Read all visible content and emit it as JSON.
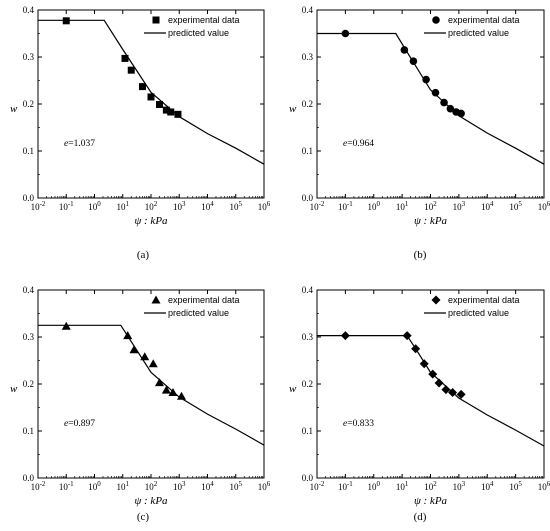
{
  "chart_data": [
    {
      "type": "scatter",
      "panel_label": "(a)",
      "ylabel": "w",
      "xlabel": "ψ : kPa",
      "xscale": "log",
      "xlim": [
        0.01,
        1000000
      ],
      "ylim": [
        0.0,
        0.4
      ],
      "xticks": [
        "10-2",
        "10-1",
        "100",
        "101",
        "102",
        "103",
        "104",
        "105",
        "106"
      ],
      "yticks": [
        "0.0",
        "0.1",
        "0.2",
        "0.3",
        "0.4"
      ],
      "legend": {
        "position": "top-right",
        "entries": [
          "experimental data",
          "predicted value"
        ]
      },
      "annotation": {
        "prefix": "e",
        "text": "=1.037"
      },
      "marker": "square",
      "series": [
        {
          "name": "experimental data",
          "points": [
            [
              0.1,
              0.377
            ],
            [
              12,
              0.297
            ],
            [
              20,
              0.272
            ],
            [
              50,
              0.237
            ],
            [
              100,
              0.215
            ],
            [
              200,
              0.199
            ],
            [
              350,
              0.187
            ],
            [
              500,
              0.183
            ],
            [
              900,
              0.178
            ]
          ]
        },
        {
          "name": "predicted value",
          "line": [
            [
              0.01,
              0.378
            ],
            [
              2.2,
              0.378
            ],
            [
              10,
              0.316
            ],
            [
              100,
              0.225
            ],
            [
              1000,
              0.173
            ],
            [
              10000,
              0.137
            ],
            [
              100000,
              0.106
            ],
            [
              1000000,
              0.072
            ]
          ]
        }
      ]
    },
    {
      "type": "scatter",
      "panel_label": "(b)",
      "ylabel": "w",
      "xlabel": "ψ : kPa",
      "xscale": "log",
      "xlim": [
        0.01,
        1000000
      ],
      "ylim": [
        0.0,
        0.4
      ],
      "xticks": [
        "10-2",
        "10-1",
        "100",
        "101",
        "102",
        "103",
        "104",
        "105",
        "106"
      ],
      "yticks": [
        "0.0",
        "0.1",
        "0.2",
        "0.3",
        "0.4"
      ],
      "legend": {
        "position": "top-right",
        "entries": [
          "experimental data",
          "predicted value"
        ]
      },
      "annotation": {
        "prefix": "e",
        "text": "=0.964"
      },
      "marker": "circle",
      "series": [
        {
          "name": "experimental data",
          "points": [
            [
              0.1,
              0.35
            ],
            [
              12,
              0.315
            ],
            [
              25,
              0.291
            ],
            [
              70,
              0.252
            ],
            [
              150,
              0.224
            ],
            [
              300,
              0.203
            ],
            [
              500,
              0.19
            ],
            [
              800,
              0.183
            ],
            [
              1200,
              0.18
            ]
          ]
        },
        {
          "name": "predicted value",
          "line": [
            [
              0.01,
              0.35
            ],
            [
              6,
              0.35
            ],
            [
              20,
              0.298
            ],
            [
              100,
              0.23
            ],
            [
              1000,
              0.175
            ],
            [
              10000,
              0.138
            ],
            [
              100000,
              0.106
            ],
            [
              1000000,
              0.072
            ]
          ]
        }
      ]
    },
    {
      "type": "scatter",
      "panel_label": "(c)",
      "ylabel": "w",
      "xlabel": "ψ : kPa",
      "xscale": "log",
      "xlim": [
        0.01,
        1000000
      ],
      "ylim": [
        0.0,
        0.4
      ],
      "xticks": [
        "10-2",
        "10-1",
        "100",
        "101",
        "102",
        "103",
        "104",
        "105",
        "106"
      ],
      "yticks": [
        "0.0",
        "0.1",
        "0.2",
        "0.3",
        "0.4"
      ],
      "legend": {
        "position": "top-right",
        "entries": [
          "experimental data",
          "predicted value"
        ]
      },
      "annotation": {
        "prefix": "e",
        "text": "=0.897"
      },
      "marker": "triangle",
      "series": [
        {
          "name": "experimental data",
          "points": [
            [
              0.1,
              0.323
            ],
            [
              15,
              0.303
            ],
            [
              25,
              0.273
            ],
            [
              60,
              0.258
            ],
            [
              120,
              0.243
            ],
            [
              200,
              0.203
            ],
            [
              350,
              0.187
            ],
            [
              600,
              0.182
            ],
            [
              1200,
              0.174
            ]
          ]
        },
        {
          "name": "predicted value",
          "line": [
            [
              0.01,
              0.325
            ],
            [
              8.5,
              0.325
            ],
            [
              20,
              0.29
            ],
            [
              100,
              0.225
            ],
            [
              1000,
              0.172
            ],
            [
              10000,
              0.136
            ],
            [
              100000,
              0.104
            ],
            [
              1000000,
              0.07
            ]
          ]
        }
      ]
    },
    {
      "type": "scatter",
      "panel_label": "(d)",
      "ylabel": "w",
      "xlabel": "ψ : kPa",
      "xscale": "log",
      "xlim": [
        0.01,
        1000000
      ],
      "ylim": [
        0.0,
        0.4
      ],
      "xticks": [
        "10-2",
        "10-1",
        "100",
        "101",
        "102",
        "103",
        "104",
        "105",
        "106"
      ],
      "yticks": [
        "0.0",
        "0.1",
        "0.2",
        "0.3",
        "0.4"
      ],
      "legend": {
        "position": "top-right",
        "entries": [
          "experimental data",
          "predicted value"
        ]
      },
      "annotation": {
        "prefix": "e",
        "text": "=0.833"
      },
      "marker": "diamond",
      "series": [
        {
          "name": "experimental data",
          "points": [
            [
              0.1,
              0.303
            ],
            [
              15,
              0.303
            ],
            [
              30,
              0.275
            ],
            [
              60,
              0.243
            ],
            [
              120,
              0.221
            ],
            [
              200,
              0.202
            ],
            [
              350,
              0.188
            ],
            [
              600,
              0.182
            ],
            [
              1200,
              0.178
            ]
          ]
        },
        {
          "name": "predicted value",
          "line": [
            [
              0.01,
              0.303
            ],
            [
              15,
              0.303
            ],
            [
              30,
              0.275
            ],
            [
              100,
              0.225
            ],
            [
              1000,
              0.17
            ],
            [
              10000,
              0.134
            ],
            [
              100000,
              0.102
            ],
            [
              1000000,
              0.068
            ]
          ]
        }
      ]
    }
  ]
}
